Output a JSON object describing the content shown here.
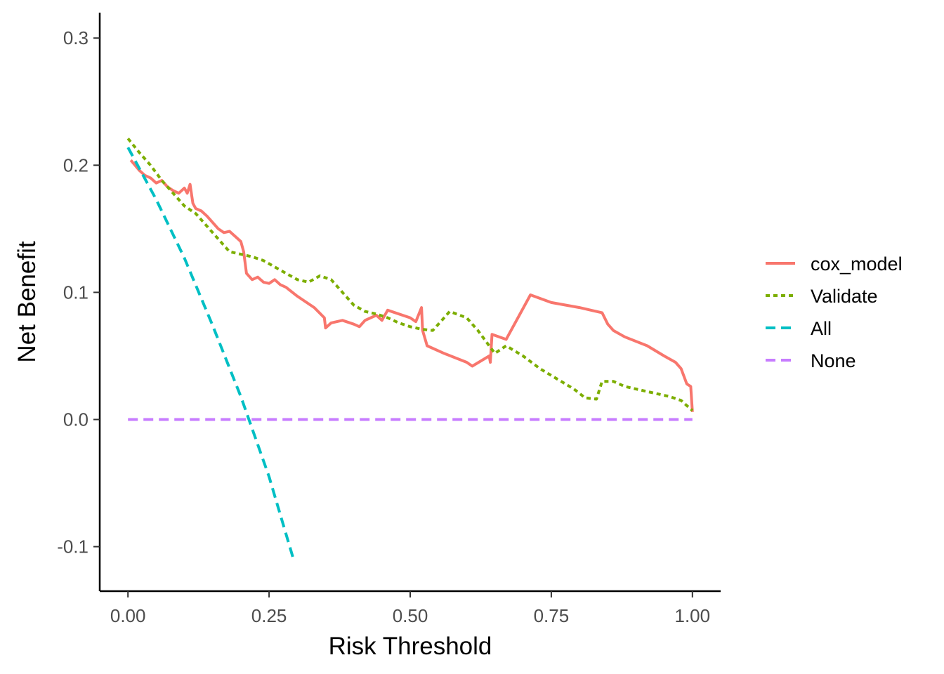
{
  "chart_data": {
    "type": "line",
    "title": "",
    "xlabel": "Risk Threshold",
    "ylabel": "Net Benefit",
    "xlim": [
      -0.05,
      1.05
    ],
    "ylim": [
      -0.135,
      0.32
    ],
    "x_ticks": [
      0.0,
      0.25,
      0.5,
      0.75,
      1.0
    ],
    "x_tick_labels": [
      "0.00",
      "0.25",
      "0.50",
      "0.75",
      "1.00"
    ],
    "y_ticks": [
      -0.1,
      0.0,
      0.1,
      0.2,
      0.3
    ],
    "y_tick_labels": [
      "-0.1",
      "0.0",
      "0.1",
      "0.2",
      "0.3"
    ],
    "grid": false,
    "legend_position": "right",
    "series": [
      {
        "name": "cox_model",
        "color": "#F8766D",
        "dash": "solid",
        "x": [
          0.005,
          0.02,
          0.03,
          0.04,
          0.05,
          0.06,
          0.07,
          0.08,
          0.09,
          0.1,
          0.105,
          0.11,
          0.115,
          0.12,
          0.13,
          0.14,
          0.15,
          0.16,
          0.17,
          0.18,
          0.19,
          0.2,
          0.205,
          0.21,
          0.22,
          0.23,
          0.24,
          0.25,
          0.26,
          0.27,
          0.28,
          0.3,
          0.33,
          0.348,
          0.35,
          0.36,
          0.38,
          0.4,
          0.41,
          0.42,
          0.44,
          0.45,
          0.46,
          0.5,
          0.51,
          0.52,
          0.522,
          0.53,
          0.56,
          0.6,
          0.61,
          0.64,
          0.642,
          0.645,
          0.67,
          0.713,
          0.75,
          0.8,
          0.82,
          0.84,
          0.85,
          0.86,
          0.88,
          0.92,
          0.95,
          0.97,
          0.98,
          0.99,
          0.997,
          1.0
        ],
        "y": [
          0.204,
          0.196,
          0.192,
          0.19,
          0.186,
          0.188,
          0.183,
          0.18,
          0.178,
          0.182,
          0.178,
          0.185,
          0.17,
          0.166,
          0.164,
          0.16,
          0.155,
          0.15,
          0.147,
          0.148,
          0.144,
          0.14,
          0.132,
          0.115,
          0.11,
          0.112,
          0.108,
          0.107,
          0.11,
          0.106,
          0.104,
          0.097,
          0.088,
          0.08,
          0.072,
          0.076,
          0.078,
          0.075,
          0.073,
          0.078,
          0.082,
          0.078,
          0.086,
          0.08,
          0.077,
          0.088,
          0.07,
          0.058,
          0.052,
          0.045,
          0.042,
          0.05,
          0.045,
          0.067,
          0.063,
          0.098,
          0.092,
          0.088,
          0.086,
          0.084,
          0.075,
          0.07,
          0.065,
          0.058,
          0.05,
          0.045,
          0.04,
          0.028,
          0.026,
          0.006
        ]
      },
      {
        "name": "Validate",
        "color": "#7CAE00",
        "dash": "dotted",
        "x": [
          0.0,
          0.02,
          0.04,
          0.06,
          0.08,
          0.1,
          0.12,
          0.14,
          0.16,
          0.18,
          0.2,
          0.22,
          0.24,
          0.26,
          0.28,
          0.3,
          0.32,
          0.34,
          0.36,
          0.38,
          0.4,
          0.42,
          0.44,
          0.46,
          0.48,
          0.5,
          0.52,
          0.54,
          0.55,
          0.57,
          0.6,
          0.62,
          0.65,
          0.67,
          0.7,
          0.73,
          0.76,
          0.79,
          0.81,
          0.83,
          0.84,
          0.86,
          0.88,
          0.9,
          0.92,
          0.94,
          0.96,
          0.98,
          1.0
        ],
        "y": [
          0.221,
          0.21,
          0.2,
          0.188,
          0.178,
          0.168,
          0.162,
          0.152,
          0.142,
          0.132,
          0.13,
          0.128,
          0.125,
          0.12,
          0.115,
          0.11,
          0.108,
          0.113,
          0.11,
          0.1,
          0.09,
          0.085,
          0.083,
          0.08,
          0.076,
          0.073,
          0.071,
          0.07,
          0.075,
          0.085,
          0.08,
          0.07,
          0.052,
          0.058,
          0.05,
          0.04,
          0.032,
          0.024,
          0.017,
          0.016,
          0.03,
          0.03,
          0.026,
          0.024,
          0.022,
          0.02,
          0.018,
          0.015,
          0.007
        ]
      },
      {
        "name": "All",
        "color": "#00BFC4",
        "dash": "dashed",
        "x": [
          0.0,
          0.05,
          0.1,
          0.15,
          0.2,
          0.25,
          0.292
        ],
        "y": [
          0.214,
          0.173,
          0.127,
          0.074,
          0.018,
          -0.045,
          -0.108
        ]
      },
      {
        "name": "None",
        "color": "#C77CFF",
        "dash": "dashed",
        "x": [
          0.0,
          1.0
        ],
        "y": [
          0.0,
          0.0
        ]
      }
    ]
  }
}
